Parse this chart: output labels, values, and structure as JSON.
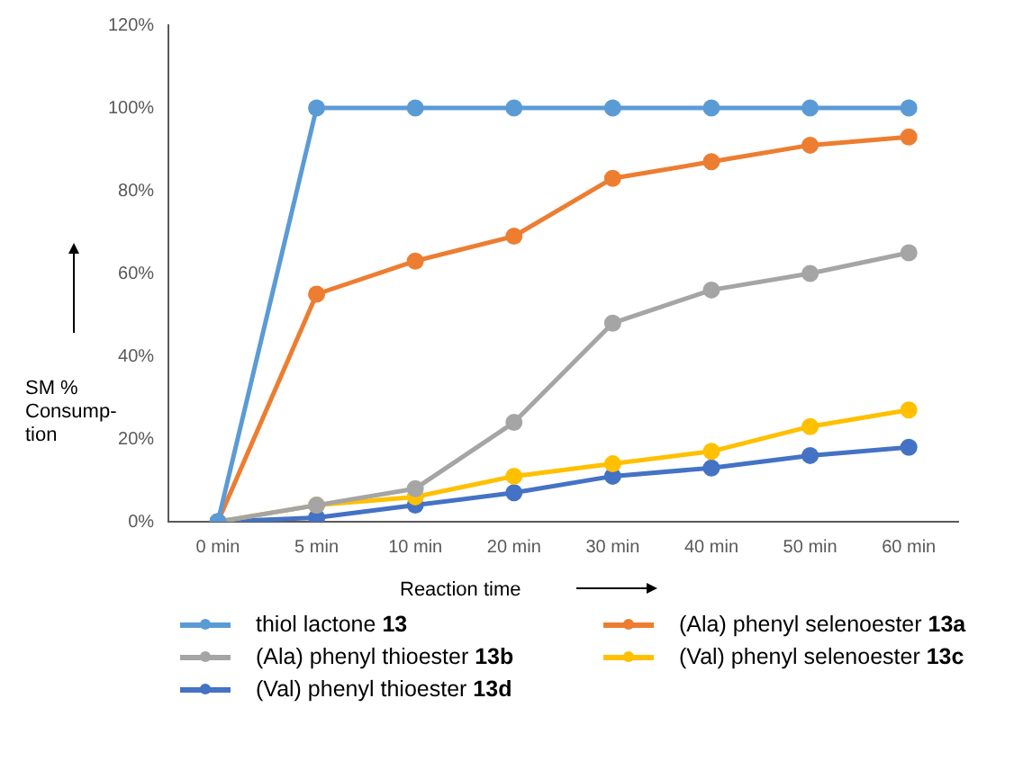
{
  "chart_data": {
    "type": "line",
    "xlabel": "Reaction time",
    "ylabel": "SM % Consump-tion",
    "categories": [
      "0 min",
      "5 min",
      "10 min",
      "20 min",
      "30 min",
      "40 min",
      "50 min",
      "60 min"
    ],
    "series": [
      {
        "name": "thiol lactone 13",
        "color": "#5b9bd5",
        "values": [
          0,
          100,
          100,
          100,
          100,
          100,
          100,
          100
        ]
      },
      {
        "name": "(Ala) phenyl selenoester 13a",
        "color": "#ed7d31",
        "values": [
          0,
          55,
          63,
          69,
          83,
          87,
          91,
          93
        ]
      },
      {
        "name": "(Ala) phenyl thioester 13b",
        "color": "#a5a5a5",
        "values": [
          0,
          4,
          8,
          24,
          48,
          56,
          60,
          65
        ]
      },
      {
        "name": "(Val) phenyl selenoester 13c",
        "color": "#ffc000",
        "values": [
          0,
          4,
          6,
          11,
          14,
          17,
          23,
          27
        ]
      },
      {
        "name": "(Val) phenyl thioester 13d",
        "color": "#4472c4",
        "values": [
          0,
          1,
          4,
          7,
          11,
          13,
          16,
          18
        ]
      }
    ],
    "ylim": [
      0,
      120
    ],
    "yticks": [
      {
        "value": 0,
        "label": "0%"
      },
      {
        "value": 20,
        "label": "20%"
      },
      {
        "value": 40,
        "label": "40%"
      },
      {
        "value": 60,
        "label": "60%"
      },
      {
        "value": 80,
        "label": "80%"
      },
      {
        "value": 100,
        "label": "100%"
      },
      {
        "value": 120,
        "label": "120%"
      }
    ],
    "grid": false,
    "legend": "bottom",
    "marker": "circle",
    "line_style": "solid"
  }
}
